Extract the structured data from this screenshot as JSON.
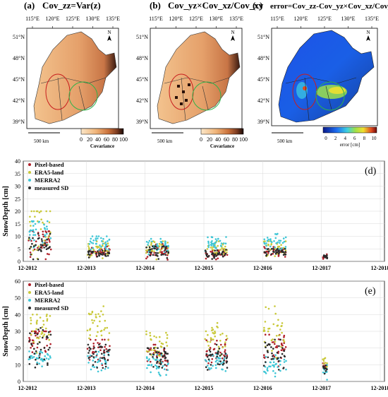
{
  "maps": {
    "lon_ticks": [
      "115°E",
      "120°E",
      "125°E",
      "130°E",
      "135°E"
    ],
    "lat_ticks": [
      "51°N",
      "48°N",
      "45°N",
      "42°N",
      "39°N"
    ],
    "scale_label": "500 km",
    "north_label": "N",
    "panel_a": {
      "letter": "(a)",
      "title": "Cov_zz=Var(z)"
    },
    "panel_b": {
      "letter": "(b)",
      "title": "Cov_yz×Cov_xz/Cov_xy"
    },
    "panel_c": {
      "letter": "(c)",
      "title": "error=Cov_zz-Cov_yz×Cov_xz/Cov_xy"
    },
    "covariance_colorbar": {
      "ticks": [
        "0",
        "20",
        "40",
        "60",
        "80",
        "100"
      ],
      "label": "Covariance"
    },
    "error_colorbar": {
      "ticks": [
        "0",
        "2",
        "4",
        "6",
        "8",
        "10"
      ],
      "label": "error [cm]"
    }
  },
  "chart_data": [
    {
      "id": "d",
      "type": "scatter",
      "panel_label": "(d)",
      "ylabel": "SnowDepth [cm]",
      "ylim": [
        0,
        40
      ],
      "yticks": [
        0,
        5,
        10,
        15,
        20,
        25,
        30,
        35,
        40
      ],
      "categories": [
        "12-2012",
        "12-2013",
        "12-2014",
        "12-2015",
        "12-2016",
        "12-2017",
        "12-2018"
      ],
      "grid": true,
      "legend_position": "top-left",
      "series": [
        {
          "name": "Pixel-based",
          "color": "#b0202a",
          "clusters": [
            [
              12,
              9,
              7
            ],
            [
              6,
              4,
              1.5
            ],
            [
              7,
              4,
              2.5
            ],
            [
              6,
              3,
              1.5
            ],
            [
              6,
              4,
              1.5
            ],
            [
              4,
              2,
              1
            ]
          ]
        },
        {
          "name": "ERA5-land",
          "color": "#c9c93a",
          "clusters": [
            [
              20,
              14,
              10
            ],
            [
              8,
              5,
              2.5
            ],
            [
              8,
              5,
              3
            ],
            [
              8,
              5,
              2.5
            ],
            [
              8,
              5,
              2.5
            ],
            [
              0,
              0,
              0
            ]
          ]
        },
        {
          "name": "MERRA2",
          "color": "#3ec6d6",
          "clusters": [
            [
              16,
              13,
              6
            ],
            [
              10,
              7,
              3
            ],
            [
              9,
              6,
              3
            ],
            [
              10,
              7,
              2.5
            ],
            [
              11,
              8,
              2.5
            ],
            [
              0,
              0,
              0
            ]
          ]
        },
        {
          "name": "measured SD",
          "color": "#2b2b2b",
          "clusters": [
            [
              11,
              7,
              5
            ],
            [
              5,
              3,
              1.5
            ],
            [
              6,
              4,
              2.5
            ],
            [
              5,
              3,
              1.5
            ],
            [
              5,
              4,
              1.5
            ],
            [
              3,
              2,
              1
            ]
          ]
        }
      ]
    },
    {
      "id": "e",
      "type": "scatter",
      "panel_label": "(e)",
      "ylabel": "SnowDepth [cm]",
      "ylim": [
        0,
        60
      ],
      "yticks": [
        0,
        10,
        20,
        30,
        40,
        50,
        60
      ],
      "categories": [
        "12-2012",
        "12-2013",
        "12-2014",
        "12-2015",
        "12-2016",
        "12-2017",
        "12-2018"
      ],
      "grid": true,
      "legend_position": "top-left",
      "series": [
        {
          "name": "Pixel-based",
          "color": "#b0202a",
          "clusters": [
            [
              30,
              25,
              8
            ],
            [
              25,
              20,
              7
            ],
            [
              22,
              16,
              6
            ],
            [
              25,
              18,
              7
            ],
            [
              28,
              20,
              9
            ],
            [
              12,
              9,
              3
            ]
          ]
        },
        {
          "name": "ERA5-land",
          "color": "#c9c93a",
          "clusters": [
            [
              40,
              32,
              10
            ],
            [
              45,
              35,
              9
            ],
            [
              30,
              22,
              8
            ],
            [
              35,
              25,
              9
            ],
            [
              45,
              30,
              12
            ],
            [
              15,
              10,
              5
            ]
          ]
        },
        {
          "name": "MERRA2",
          "color": "#3ec6d6",
          "clusters": [
            [
              18,
              14,
              4
            ],
            [
              18,
              12,
              5
            ],
            [
              16,
              10,
              5
            ],
            [
              18,
              12,
              5
            ],
            [
              16,
              10,
              6
            ],
            [
              10,
              6,
              3
            ]
          ]
        },
        {
          "name": "measured SD",
          "color": "#2b2b2b",
          "clusters": [
            [
              32,
              22,
              10
            ],
            [
              22,
              16,
              7
            ],
            [
              20,
              14,
              6
            ],
            [
              22,
              15,
              7
            ],
            [
              25,
              18,
              9
            ],
            [
              12,
              8,
              3
            ]
          ]
        }
      ]
    }
  ]
}
